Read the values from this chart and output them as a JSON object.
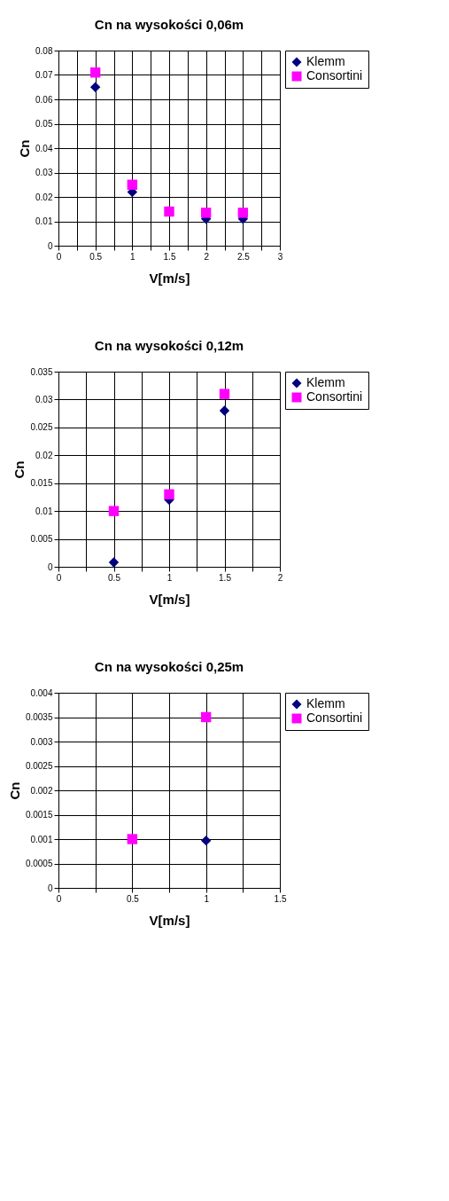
{
  "chart_data": [
    {
      "type": "scatter",
      "title": "Cn na wysokości 0,06m",
      "xlabel": "V[m/s]",
      "ylabel": "Cn",
      "xlim": [
        0,
        3
      ],
      "ylim": [
        0,
        0.08
      ],
      "xticks": [
        0,
        {
          "value": 0.25,
          "label": null
        },
        0.5,
        {
          "value": 0.75,
          "label": null
        },
        1,
        {
          "value": 1.25,
          "label": null
        },
        1.5,
        {
          "value": 1.75,
          "label": null
        },
        2,
        {
          "value": 2.25,
          "label": null
        },
        2.5,
        {
          "value": 2.75,
          "label": null
        },
        3
      ],
      "yticks": [
        0,
        0.01,
        0.02,
        0.03,
        0.04,
        0.05,
        0.06,
        0.07,
        0.08
      ],
      "grid": true,
      "legend": "top right",
      "series": [
        {
          "name": "Klemm",
          "color": "#000080",
          "marker": "diamond",
          "x": [
            0.5,
            1,
            2,
            2.5
          ],
          "values": [
            0.065,
            0.022,
            0.011,
            0.011
          ]
        },
        {
          "name": "Consortini",
          "color": "#ff00ff",
          "marker": "square",
          "x": [
            0.5,
            1,
            1.5,
            2,
            2.5
          ],
          "values": [
            0.071,
            0.025,
            0.014,
            0.0135,
            0.0135
          ]
        }
      ]
    },
    {
      "type": "scatter",
      "title": "Cn na wysokości 0,12m",
      "xlabel": "V[m/s]",
      "ylabel": "Cn",
      "xlim": [
        0,
        2
      ],
      "ylim": [
        0,
        0.035
      ],
      "xticks": [
        0,
        {
          "value": 0.25,
          "label": null
        },
        0.5,
        {
          "value": 0.75,
          "label": null
        },
        1,
        {
          "value": 1.25,
          "label": null
        },
        1.5,
        {
          "value": 1.75,
          "label": null
        },
        2
      ],
      "yticks": [
        0,
        0.005,
        0.01,
        0.015,
        0.02,
        0.025,
        0.03,
        0.035
      ],
      "grid": true,
      "legend": "top right",
      "series": [
        {
          "name": "Klemm",
          "color": "#000080",
          "marker": "diamond",
          "x": [
            0.5,
            1,
            1.5
          ],
          "values": [
            0.0008,
            0.012,
            0.028
          ]
        },
        {
          "name": "Consortini",
          "color": "#ff00ff",
          "marker": "square",
          "x": [
            0.5,
            1,
            1.5
          ],
          "values": [
            0.01,
            0.013,
            0.031
          ]
        }
      ]
    },
    {
      "type": "scatter",
      "title": "Cn na wysokości 0,25m",
      "xlabel": "V[m/s]",
      "ylabel": "Cn",
      "xlim": [
        0,
        1.5
      ],
      "ylim": [
        0,
        0.004
      ],
      "xticks": [
        0,
        {
          "value": 0.25,
          "label": null
        },
        0.5,
        {
          "value": 0.75,
          "label": null
        },
        1,
        {
          "value": 1.25,
          "label": null
        },
        1.5
      ],
      "yticks": [
        0,
        0.0005,
        0.001,
        0.0015,
        0.002,
        0.0025,
        0.003,
        0.0035,
        0.004
      ],
      "grid": true,
      "legend": "top right",
      "series": [
        {
          "name": "Klemm",
          "color": "#000080",
          "marker": "diamond",
          "x": [
            1
          ],
          "values": [
            0.00097
          ]
        },
        {
          "name": "Consortini",
          "color": "#ff00ff",
          "marker": "square",
          "x": [
            0.5,
            1
          ],
          "values": [
            0.001,
            0.0035
          ]
        }
      ]
    }
  ]
}
